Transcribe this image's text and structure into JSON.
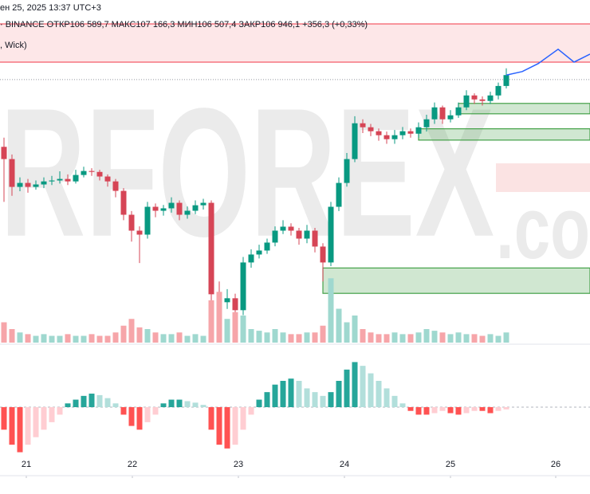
{
  "header": {
    "date": "ен 25, 2025 13:37 UTC+3",
    "ohlc": "· BINANCE  ОТКР106 589,7  МАКС107 166,3  МИН106 507,4  ЗАКР106 946,1  +356,3 (+0,33%)",
    "indicator": ", Wick)"
  },
  "chart_data": [
    {
      "type": "candlestick",
      "watermark": "RFOREX",
      "watermark_suffix": ".co",
      "open": [
        104600,
        104200,
        103290,
        103420,
        103290,
        103370,
        103470,
        103500,
        103550,
        103470,
        103680,
        103810,
        103780,
        103630,
        103470,
        103160,
        102380,
        101860,
        101730,
        102640,
        102510,
        102590,
        102770,
        102380,
        102510,
        102690,
        102770,
        99780,
        99520,
        99650,
        99260,
        100820,
        101080,
        101210,
        101470,
        101860,
        101990,
        101860,
        101600,
        101860,
        101340,
        100820,
        102640,
        103420,
        104200,
        105370,
        105240,
        105110,
        104980,
        104850,
        104980,
        105110,
        105030,
        105240,
        105500,
        105890,
        105500,
        105630,
        105890,
        106280,
        106150,
        106100,
        106280,
        106589.7
      ],
      "high": [
        104900,
        104350,
        103600,
        103550,
        103500,
        103600,
        103650,
        103800,
        103700,
        103850,
        103950,
        103900,
        103850,
        103700,
        103550,
        103250,
        102500,
        102000,
        102800,
        102750,
        102700,
        102950,
        102850,
        102650,
        102850,
        102900,
        102850,
        100200,
        99950,
        99800,
        101000,
        101250,
        101400,
        101600,
        102000,
        102200,
        102100,
        101950,
        102050,
        101950,
        101450,
        102800,
        103600,
        104400,
        105600,
        105500,
        105350,
        105200,
        105100,
        105150,
        105250,
        105200,
        105400,
        105650,
        106050,
        105950,
        105800,
        106050,
        106450,
        106350,
        106250,
        106400,
        106700,
        107166.3
      ],
      "low": [
        102800,
        103000,
        103150,
        103100,
        103200,
        103250,
        103350,
        103400,
        103350,
        103400,
        103600,
        103650,
        103500,
        103300,
        102950,
        102200,
        101500,
        100800,
        101600,
        102300,
        102350,
        102450,
        102200,
        102250,
        102400,
        102550,
        99100,
        98800,
        99300,
        98500,
        99100,
        100650,
        100950,
        101100,
        101350,
        101750,
        101700,
        101400,
        101450,
        101150,
        100200,
        100700,
        102500,
        103300,
        104100,
        105050,
        104950,
        104800,
        104700,
        104700,
        104850,
        104900,
        104900,
        105100,
        105350,
        105350,
        105400,
        105550,
        105800,
        106000,
        105950,
        106000,
        106150,
        106507.4
      ],
      "close": [
        104200,
        103290,
        103420,
        103290,
        103370,
        103470,
        103500,
        103550,
        103470,
        103680,
        103810,
        103780,
        103630,
        103470,
        103160,
        102380,
        101860,
        101730,
        102640,
        102510,
        102590,
        102770,
        102380,
        102510,
        102690,
        102770,
        99780,
        99520,
        99650,
        99260,
        100820,
        101080,
        101210,
        101470,
        101860,
        101990,
        101860,
        101600,
        101860,
        101340,
        100820,
        102640,
        103420,
        104200,
        105370,
        105240,
        105110,
        104980,
        104850,
        104980,
        105110,
        105030,
        105240,
        105500,
        105890,
        105500,
        105630,
        105890,
        106280,
        106150,
        106100,
        106280,
        106589.7,
        106946.1
      ],
      "xlim": [
        -0.5,
        73.5
      ],
      "ylim": [
        98200,
        109400
      ],
      "xticks": [
        {
          "value": 2.8,
          "label": "21"
        },
        {
          "value": 16.1,
          "label": "22"
        },
        {
          "value": 29.4,
          "label": "23"
        },
        {
          "value": 42.7,
          "label": "24"
        },
        {
          "value": 56,
          "label": "25"
        },
        {
          "value": 69.2,
          "label": "26"
        }
      ],
      "up_color": "#089981",
      "down_color": "#d64556",
      "resistance": {
        "top": 108620,
        "bottom": 107370,
        "color": "#f23645"
      },
      "zones": [
        {
          "top": 106020,
          "bottom": 105680,
          "start": 57
        },
        {
          "top": 105190,
          "bottom": 104820,
          "start": 52
        },
        {
          "top": 100640,
          "bottom": 99810,
          "start": 40
        }
      ],
      "zone_color": "#43a047",
      "price_line": 106800,
      "projection": {
        "x": [
          63,
          65,
          67,
          69.5,
          71.5,
          73.5
        ],
        "values": [
          106946.1,
          107060,
          107320,
          107790,
          107370,
          107630
        ],
        "color": "#2962ff"
      }
    },
    {
      "type": "volume",
      "values": [
        12,
        8,
        6,
        5,
        4,
        5,
        4,
        4,
        5,
        4,
        4,
        5,
        4,
        4,
        6,
        10,
        14,
        9,
        8,
        6,
        5,
        5,
        6,
        4,
        5,
        4,
        25,
        30,
        14,
        18,
        16,
        8,
        7,
        6,
        8,
        6,
        5,
        5,
        6,
        6,
        10,
        38,
        20,
        12,
        16,
        8,
        6,
        5,
        5,
        6,
        5,
        5,
        6,
        8,
        7,
        6,
        5,
        6,
        5,
        5,
        4,
        5,
        4,
        6
      ],
      "ylim": [
        0,
        40
      ],
      "up_color": "#9fd8cf",
      "down_color": "#f6a5a9"
    },
    {
      "type": "oscillator",
      "values": [
        -3,
        -5,
        -6,
        -5,
        -4,
        -3,
        -2,
        -1,
        0.5,
        1,
        1.5,
        1.8,
        1.6,
        1.2,
        0.5,
        -1,
        -2.5,
        -3,
        -2,
        -1,
        0.5,
        1,
        1,
        0.8,
        0.6,
        0.3,
        -3,
        -5,
        -5.5,
        -5,
        -3,
        -1,
        1,
        2,
        3,
        3.5,
        3.8,
        3.5,
        2.5,
        2,
        1.5,
        2,
        3.5,
        5,
        6,
        5.5,
        4.5,
        3.5,
        2.5,
        1.5,
        0.5,
        -0.5,
        -1,
        -1,
        -0.8,
        -0.5,
        -0.8,
        -1,
        -0.8,
        -0.5,
        -0.5,
        -0.8,
        -0.5,
        -0.3
      ],
      "ylim": [
        -7,
        7
      ],
      "colors": [
        "#26a69a",
        "#b2dfdb",
        "#ff5252",
        "#ffcdd2"
      ]
    }
  ]
}
